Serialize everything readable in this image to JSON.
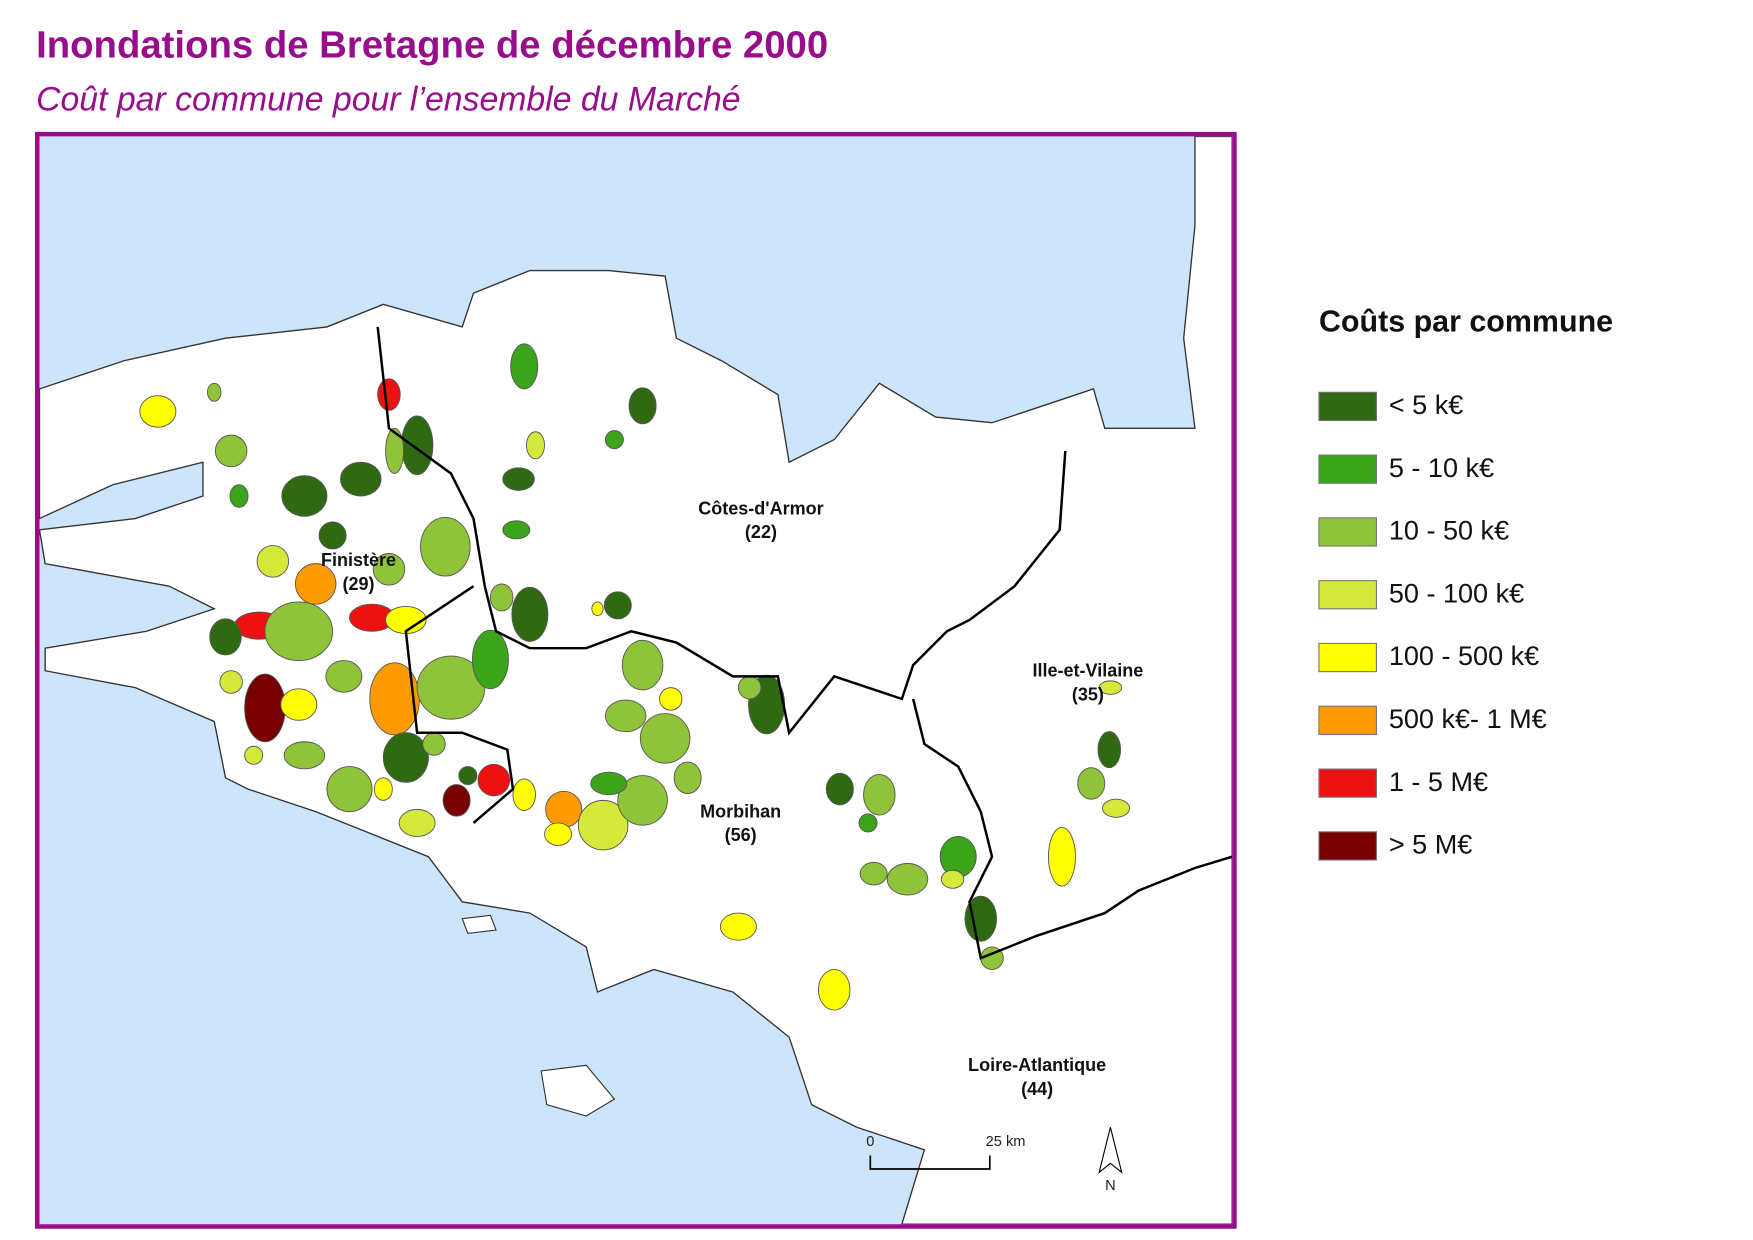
{
  "title": "Inondations de Bretagne de décembre 2000",
  "subtitle": "Coût par commune pour l’ensemble du Marché",
  "legend": {
    "title": "Coûts par commune",
    "items": [
      {
        "label": "< 5 k€",
        "color": "#2f6a12"
      },
      {
        "label": "5 - 10 k€",
        "color": "#3ba41b"
      },
      {
        "label": "10 - 50 k€",
        "color": "#8fc43a"
      },
      {
        "label": "50 - 100 k€",
        "color": "#d5e93b"
      },
      {
        "label": "100 - 500 k€",
        "color": "#ffff00"
      },
      {
        "label": "500 k€- 1 M€",
        "color": "#ff9a00"
      },
      {
        "label": "1 - 5 M€",
        "color": "#ee1111"
      },
      {
        "label": "> 5 M€",
        "color": "#780000"
      }
    ]
  },
  "departments": [
    {
      "name": "Finistère",
      "code": "(29)"
    },
    {
      "name": "Côtes-d'Armor",
      "code": "(22)"
    },
    {
      "name": "Ille-et-Vilaine",
      "code": "(35)"
    },
    {
      "name": "Morbihan",
      "code": "(56)"
    },
    {
      "name": "Loire-Atlantique",
      "code": "(44)"
    }
  ],
  "scale": {
    "start": "0",
    "end": "25 km"
  },
  "north": "N"
}
